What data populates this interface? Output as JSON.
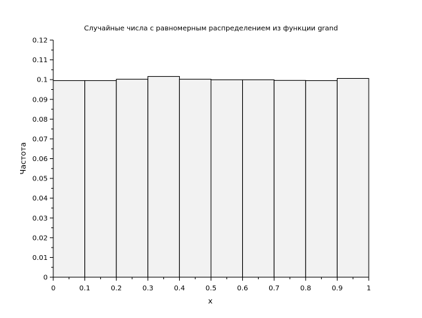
{
  "chart_data": {
    "type": "bar",
    "title": "Случайные числа с равномерным распределением из функции grand",
    "xlabel": "x",
    "ylabel": "Частота",
    "xlim": [
      0,
      1
    ],
    "ylim": [
      0,
      0.12
    ],
    "bin_edges": [
      0,
      0.1,
      0.2,
      0.3,
      0.4,
      0.5,
      0.6,
      0.7,
      0.8,
      0.9,
      1.0
    ],
    "values": [
      0.0995,
      0.0995,
      0.1002,
      0.1016,
      0.1002,
      0.0999,
      0.0999,
      0.0996,
      0.0995,
      0.1006
    ],
    "x_ticks": [
      "0",
      "0.1",
      "0.2",
      "0.3",
      "0.4",
      "0.5",
      "0.6",
      "0.7",
      "0.8",
      "0.9",
      "1"
    ],
    "y_ticks": [
      "0",
      "0.01",
      "0.02",
      "0.03",
      "0.04",
      "0.05",
      "0.06",
      "0.07",
      "0.08",
      "0.09",
      "0.1",
      "0.11",
      "0.12"
    ],
    "grid": false,
    "bar_fill": "#f2f2f2",
    "bar_stroke": "#000000"
  }
}
